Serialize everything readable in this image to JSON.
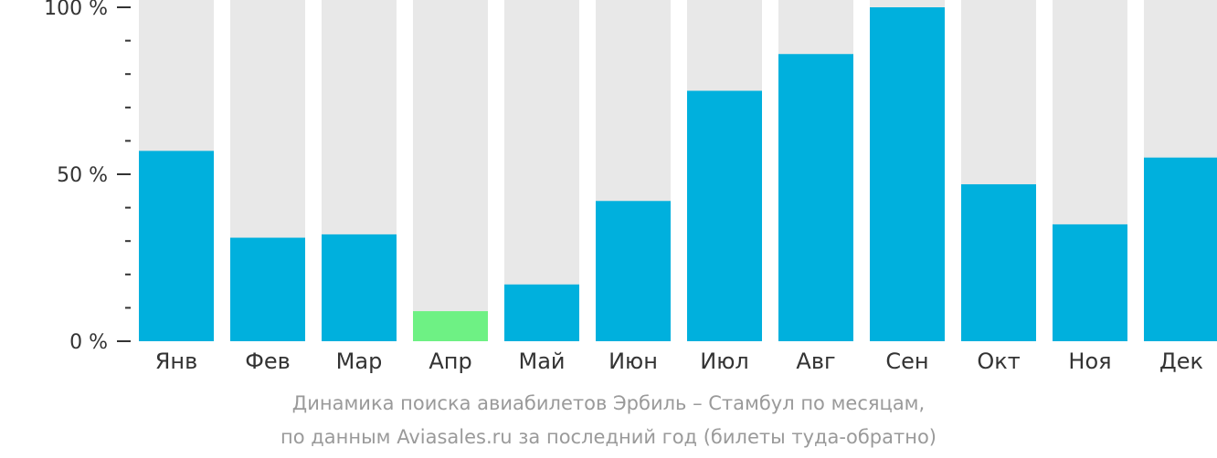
{
  "chart_data": {
    "type": "bar",
    "categories": [
      "Янв",
      "Фев",
      "Мар",
      "Апр",
      "Май",
      "Июн",
      "Июл",
      "Авг",
      "Сен",
      "Окт",
      "Ноя",
      "Дек"
    ],
    "values": [
      57,
      31,
      32,
      9,
      17,
      42,
      75,
      86,
      100,
      47,
      35,
      55
    ],
    "highlight_index": 3,
    "ylim": [
      0,
      100
    ],
    "yticks": [
      {
        "value": 0,
        "label": "0 %"
      },
      {
        "value": 50,
        "label": "50 %"
      },
      {
        "value": 100,
        "label": "100 %"
      }
    ],
    "minor_tick_step": 10,
    "colors": {
      "bar": "#00b0dd",
      "highlight": "#6ef184",
      "track": "#e8e8e8",
      "axis": "#333333"
    },
    "caption_line1": "Динамика поиска авиабилетов Эрбиль – Стамбул по месяцам,",
    "caption_line2": "по данным Aviasales.ru за последний год (билеты туда-обратно)"
  }
}
